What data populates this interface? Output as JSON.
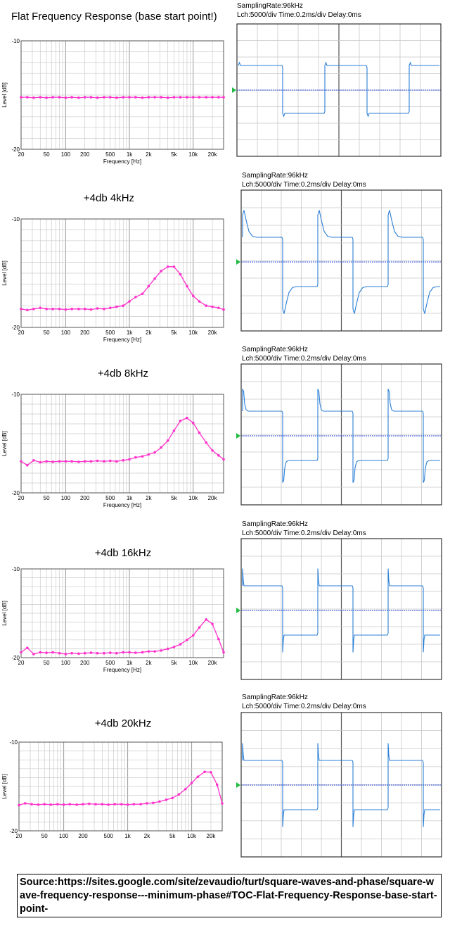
{
  "source_text": "Source:https://sites.google.com/site/zevaudio/turt/square-waves-and-phase/square-wave-frequency-response---minimum-phase#TOC-Flat-Frequency-Response-base-start-point-",
  "colors": {
    "frequency_curve": "#ff33cc",
    "scope_trace": "#2b7fd6",
    "scope_center": "#1f3fcf",
    "scope_marker": "#22bb44",
    "grid": "#cccccc"
  },
  "chart_data": [
    {
      "type": "line",
      "title": "Flat Frequency Response (base start point!)",
      "xlabel": "Frequency [Hz]",
      "ylabel": "Level [dB]",
      "x_scale": "log",
      "xlim": [
        20,
        30000
      ],
      "ylim": [
        -20,
        -10
      ],
      "x_ticks": [
        "20",
        "50",
        "100",
        "200",
        "500",
        "1k",
        "2k",
        "5k",
        "10k",
        "20k"
      ],
      "y_ticks": [
        "-10",
        "-20"
      ],
      "series": [
        {
          "x": [
            20,
            25,
            31.5,
            40,
            50,
            63,
            80,
            100,
            125,
            160,
            200,
            250,
            315,
            400,
            500,
            630,
            800,
            1000,
            1250,
            1600,
            2000,
            2500,
            3150,
            4000,
            5000,
            6300,
            8000,
            10000,
            12500,
            16000,
            20000,
            25000,
            30000
          ],
          "y": [
            -15.2,
            -15.2,
            -15.25,
            -15.2,
            -15.25,
            -15.2,
            -15.2,
            -15.25,
            -15.2,
            -15.25,
            -15.2,
            -15.2,
            -15.25,
            -15.2,
            -15.2,
            -15.25,
            -15.2,
            -15.2,
            -15.2,
            -15.25,
            -15.2,
            -15.2,
            -15.2,
            -15.25,
            -15.2,
            -15.2,
            -15.2,
            -15.2,
            -15.2,
            -15.2,
            -15.2,
            -15.2,
            -15.2
          ]
        }
      ],
      "scope": {
        "info_line1": "SamplingRate:96kHz",
        "info_line2": "Lch:5000/div  Time:0.2ms/div  Delay:0ms",
        "waveform": "flat"
      }
    },
    {
      "type": "line",
      "title": "+4db 4kHz",
      "xlabel": "Frequency [Hz]",
      "ylabel": "Level [dB]",
      "x_scale": "log",
      "xlim": [
        20,
        30000
      ],
      "ylim": [
        -20,
        -10
      ],
      "x_ticks": [
        "20",
        "50",
        "100",
        "200",
        "500",
        "1k",
        "2k",
        "5k",
        "10k",
        "20k"
      ],
      "y_ticks": [
        "-10",
        "-20"
      ],
      "series": [
        {
          "x": [
            20,
            25,
            31.5,
            40,
            50,
            63,
            80,
            100,
            125,
            160,
            200,
            250,
            315,
            400,
            500,
            630,
            800,
            1000,
            1250,
            1600,
            2000,
            2500,
            3150,
            4000,
            5000,
            6300,
            8000,
            10000,
            12500,
            16000,
            20000,
            25000,
            30000
          ],
          "y": [
            -18.3,
            -18.4,
            -18.3,
            -18.2,
            -18.3,
            -18.3,
            -18.3,
            -18.35,
            -18.3,
            -18.3,
            -18.3,
            -18.35,
            -18.25,
            -18.3,
            -18.2,
            -18.1,
            -18.0,
            -17.6,
            -17.2,
            -16.9,
            -16.2,
            -15.5,
            -14.8,
            -14.4,
            -14.4,
            -15.1,
            -16.2,
            -17.1,
            -17.6,
            -18.0,
            -18.1,
            -18.2,
            -18.35
          ]
        }
      ],
      "scope": {
        "info_line1": "SamplingRate:96kHz",
        "info_line2": "Lch:5000/div  Time:0.2ms/div  Delay:0ms",
        "waveform": "4k"
      }
    },
    {
      "type": "line",
      "title": "+4db 8kHz",
      "xlabel": "Frequency [Hz]",
      "ylabel": "Level [dB]",
      "x_scale": "log",
      "xlim": [
        20,
        30000
      ],
      "ylim": [
        -20,
        -10
      ],
      "x_ticks": [
        "20",
        "50",
        "100",
        "200",
        "500",
        "1k",
        "2k",
        "5k",
        "10k",
        "20k"
      ],
      "y_ticks": [
        "-10",
        "-20"
      ],
      "series": [
        {
          "x": [
            20,
            25,
            31.5,
            40,
            50,
            63,
            80,
            100,
            125,
            160,
            200,
            250,
            315,
            400,
            500,
            630,
            800,
            1000,
            1250,
            1600,
            2000,
            2500,
            3150,
            4000,
            5000,
            6300,
            8000,
            10000,
            12500,
            16000,
            20000,
            25000,
            30000
          ],
          "y": [
            -16.8,
            -17.2,
            -16.7,
            -16.9,
            -16.8,
            -16.85,
            -16.8,
            -16.8,
            -16.8,
            -16.85,
            -16.8,
            -16.8,
            -16.75,
            -16.8,
            -16.75,
            -16.8,
            -16.7,
            -16.6,
            -16.4,
            -16.3,
            -16.1,
            -15.9,
            -15.4,
            -14.7,
            -13.7,
            -12.7,
            -12.4,
            -12.9,
            -13.9,
            -14.9,
            -15.7,
            -16.2,
            -16.6
          ]
        }
      ],
      "scope": {
        "info_line1": "SamplingRate:96kHz",
        "info_line2": "Lch:5000/div  Time:0.2ms/div  Delay:0ms",
        "waveform": "8k"
      }
    },
    {
      "type": "line",
      "title": "+4db 16kHz",
      "xlabel": "Frequency [Hz]",
      "ylabel": "Level [dB]",
      "x_scale": "log",
      "xlim": [
        20,
        30000
      ],
      "ylim": [
        -20,
        -10
      ],
      "x_ticks": [
        "20",
        "50",
        "100",
        "200",
        "500",
        "1k",
        "2k",
        "5k",
        "10k",
        "20k"
      ],
      "y_ticks": [
        "-10",
        "-20"
      ],
      "series": [
        {
          "x": [
            20,
            25,
            31.5,
            40,
            50,
            63,
            80,
            100,
            125,
            160,
            200,
            250,
            315,
            400,
            500,
            630,
            800,
            1000,
            1250,
            1600,
            2000,
            2500,
            3150,
            4000,
            5000,
            6300,
            8000,
            10000,
            12500,
            16000,
            20000,
            25000,
            30000
          ],
          "y": [
            -19.4,
            -18.9,
            -19.6,
            -19.4,
            -19.45,
            -19.4,
            -19.5,
            -19.6,
            -19.5,
            -19.55,
            -19.5,
            -19.45,
            -19.5,
            -19.5,
            -19.45,
            -19.5,
            -19.4,
            -19.4,
            -19.45,
            -19.4,
            -19.3,
            -19.3,
            -19.2,
            -19.0,
            -18.8,
            -18.5,
            -18.0,
            -17.5,
            -16.6,
            -15.7,
            -16.2,
            -17.9,
            -19.4
          ]
        }
      ],
      "scope": {
        "info_line1": "SamplingRate:96kHz",
        "info_line2": "Lch:5000/div  Time:0.2ms/div  Delay:0ms",
        "waveform": "16k"
      }
    },
    {
      "type": "line",
      "title": "+4db 20kHz",
      "xlabel": "",
      "ylabel": "Level [dB]",
      "x_scale": "log",
      "xlim": [
        20,
        30000
      ],
      "ylim": [
        -20,
        -10
      ],
      "x_ticks": [
        "20",
        "50",
        "100",
        "200",
        "500",
        "1k",
        "2k",
        "5k",
        "10k",
        "20k"
      ],
      "y_ticks": [
        "-10",
        "-20"
      ],
      "series": [
        {
          "x": [
            20,
            25,
            31.5,
            40,
            50,
            63,
            80,
            100,
            125,
            160,
            200,
            250,
            315,
            400,
            500,
            630,
            800,
            1000,
            1250,
            1600,
            2000,
            2500,
            3150,
            4000,
            5000,
            6300,
            8000,
            10000,
            12500,
            16000,
            20000,
            25000,
            30000
          ],
          "y": [
            -17.1,
            -16.9,
            -17.0,
            -17.05,
            -17.0,
            -17.05,
            -17.0,
            -17.05,
            -17.0,
            -17.05,
            -17.0,
            -16.95,
            -17.0,
            -17.0,
            -17.05,
            -17.0,
            -17.0,
            -17.05,
            -17.0,
            -17.0,
            -16.9,
            -16.85,
            -16.7,
            -16.5,
            -16.3,
            -15.9,
            -15.3,
            -14.6,
            -13.9,
            -13.35,
            -13.4,
            -14.8,
            -16.9
          ]
        }
      ],
      "scope": {
        "info_line1": "SamplingRate:96kHz",
        "info_line2": "Lch:5000/div  Time:0.2ms/div  Delay:0ms",
        "waveform": "20k"
      }
    }
  ]
}
